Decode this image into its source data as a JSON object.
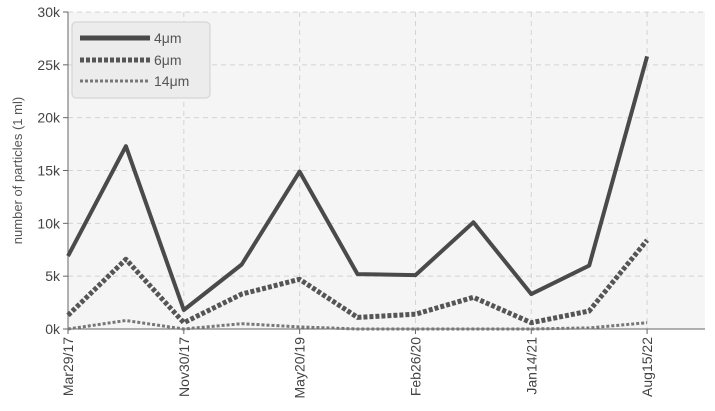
{
  "chart_data": {
    "type": "line",
    "title": "",
    "xlabel": "",
    "ylabel": "number of particles (1 ml)",
    "ylim": [
      0,
      30000
    ],
    "yticks": [
      0,
      5000,
      10000,
      15000,
      20000,
      25000,
      30000
    ],
    "yticklabels": [
      "0k",
      "5k",
      "10k",
      "15k",
      "20k",
      "25k",
      "30k"
    ],
    "x_count": 12,
    "xticks": [
      {
        "index": 0,
        "label": "Mar29/17"
      },
      {
        "index": 2,
        "label": "Nov30/17"
      },
      {
        "index": 4,
        "label": "May20/19"
      },
      {
        "index": 6,
        "label": "Feb26/20"
      },
      {
        "index": 8,
        "label": "Jan14/21"
      },
      {
        "index": 10,
        "label": "Aug15/22"
      }
    ],
    "grid": true,
    "legend_position": "top-left",
    "series": [
      {
        "name": "4μm",
        "values": [
          6900,
          17300,
          1800,
          6100,
          14900,
          5200,
          5100,
          10100,
          3300,
          6000,
          25800,
          null
        ],
        "color": "#4a4a4a",
        "style": "solid"
      },
      {
        "name": "6μm",
        "values": [
          1300,
          6600,
          600,
          3300,
          4700,
          1100,
          1400,
          3000,
          600,
          1700,
          8400,
          null
        ],
        "color": "#555555",
        "style": "dashed-thick"
      },
      {
        "name": "14μm",
        "values": [
          0,
          800,
          0,
          500,
          200,
          0,
          0,
          0,
          0,
          100,
          600,
          null
        ],
        "color": "#777777",
        "style": "dashed-thin"
      }
    ]
  }
}
